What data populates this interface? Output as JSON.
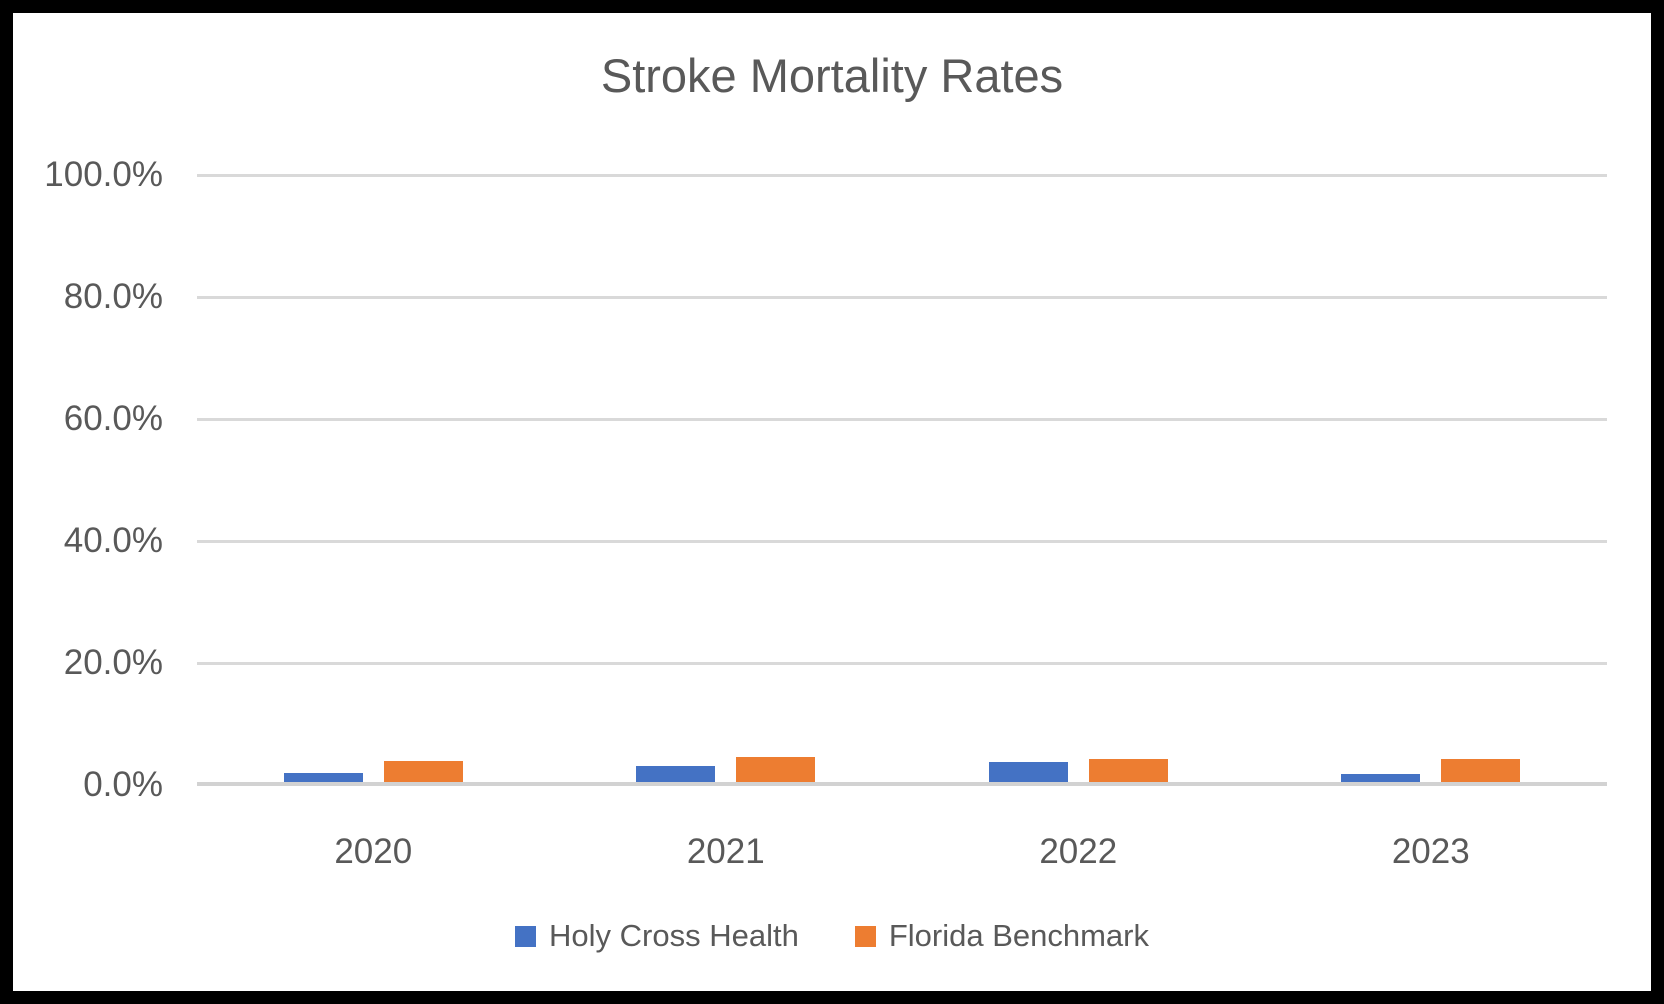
{
  "chart_data": {
    "type": "bar",
    "title": "Stroke Mortality Rates",
    "categories": [
      "2020",
      "2021",
      "2022",
      "2023"
    ],
    "series": [
      {
        "name": "Holy Cross Health",
        "color": "#4472C4",
        "values": [
          1.4,
          2.6,
          3.3,
          1.3
        ]
      },
      {
        "name": "Florida Benchmark",
        "color": "#ED7D31",
        "values": [
          3.5,
          4.1,
          3.7,
          3.7
        ]
      }
    ],
    "ylim": [
      0,
      100
    ],
    "y_ticks": [
      {
        "value": 100,
        "label": "100.0%"
      },
      {
        "value": 80,
        "label": "80.0%"
      },
      {
        "value": 60,
        "label": "60.0%"
      },
      {
        "value": 40,
        "label": "40.0%"
      },
      {
        "value": 20,
        "label": "20.0%"
      },
      {
        "value": 0,
        "label": "0.0%"
      }
    ],
    "grid": true,
    "legend_position": "bottom",
    "text_color": "#595959",
    "gridline_color": "#D9D9D9"
  }
}
